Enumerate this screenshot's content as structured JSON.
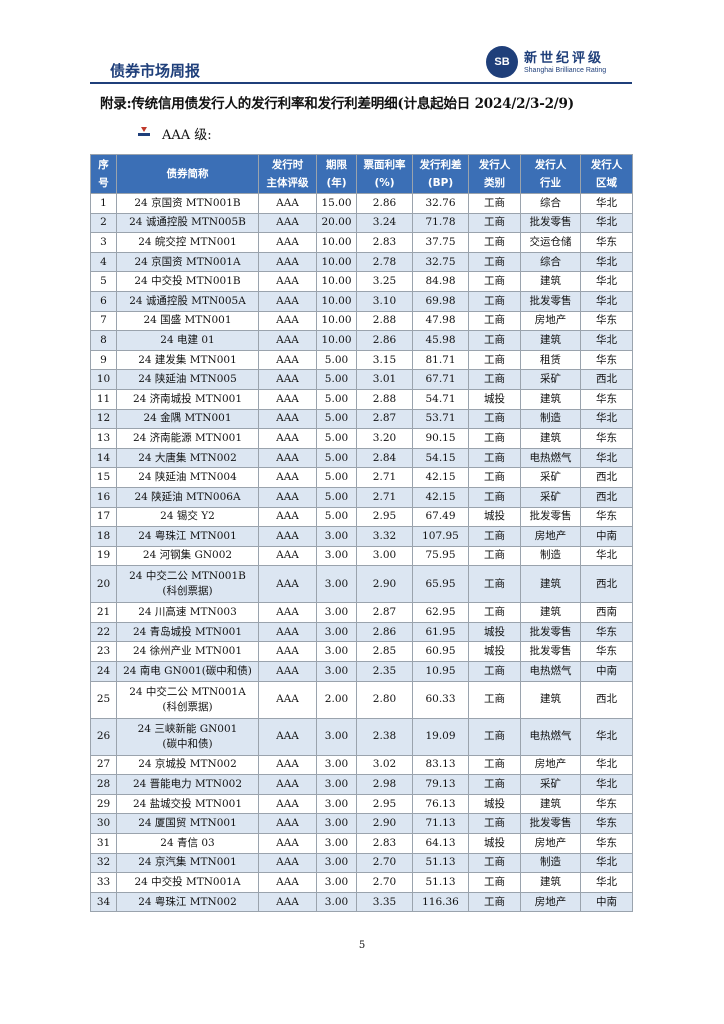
{
  "header": {
    "title": "债券市场周报",
    "logo_badge": "SB",
    "logo_cn": "新世纪评级",
    "logo_en": "Shanghai Brilliance Rating"
  },
  "appendix_title": "附录:传统信用债发行人的发行利率和发行利差明细(计息起始日 2024/2/3-2/9)",
  "section_label": "AAA 级:",
  "table": {
    "headers": [
      [
        "序",
        "号"
      ],
      [
        "债券简称"
      ],
      [
        "发行时",
        "主体评级"
      ],
      [
        "期限",
        "(年)"
      ],
      [
        "票面利率",
        "(%)"
      ],
      [
        "发行利差",
        "(BP)"
      ],
      [
        "发行人",
        "类别"
      ],
      [
        "发行人",
        "行业"
      ],
      [
        "发行人",
        "区域"
      ]
    ],
    "rows": [
      {
        "no": "1",
        "name": "24 京国资 MTN001B",
        "name2": "",
        "rating": "AAA",
        "term": "15.00",
        "coupon": "2.86",
        "spread": "32.76",
        "category": "工商",
        "industry": "综合",
        "region": "华北"
      },
      {
        "no": "2",
        "name": "24 诚通控股 MTN005B",
        "name2": "",
        "rating": "AAA",
        "term": "20.00",
        "coupon": "3.24",
        "spread": "71.78",
        "category": "工商",
        "industry": "批发零售",
        "region": "华北"
      },
      {
        "no": "3",
        "name": "24 皖交控 MTN001",
        "name2": "",
        "rating": "AAA",
        "term": "10.00",
        "coupon": "2.83",
        "spread": "37.75",
        "category": "工商",
        "industry": "交运仓储",
        "region": "华东"
      },
      {
        "no": "4",
        "name": "24 京国资 MTN001A",
        "name2": "",
        "rating": "AAA",
        "term": "10.00",
        "coupon": "2.78",
        "spread": "32.75",
        "category": "工商",
        "industry": "综合",
        "region": "华北"
      },
      {
        "no": "5",
        "name": "24 中交投 MTN001B",
        "name2": "",
        "rating": "AAA",
        "term": "10.00",
        "coupon": "3.25",
        "spread": "84.98",
        "category": "工商",
        "industry": "建筑",
        "region": "华北"
      },
      {
        "no": "6",
        "name": "24 诚通控股 MTN005A",
        "name2": "",
        "rating": "AAA",
        "term": "10.00",
        "coupon": "3.10",
        "spread": "69.98",
        "category": "工商",
        "industry": "批发零售",
        "region": "华北"
      },
      {
        "no": "7",
        "name": "24 国盛 MTN001",
        "name2": "",
        "rating": "AAA",
        "term": "10.00",
        "coupon": "2.88",
        "spread": "47.98",
        "category": "工商",
        "industry": "房地产",
        "region": "华东"
      },
      {
        "no": "8",
        "name": "24 电建 01",
        "name2": "",
        "rating": "AAA",
        "term": "10.00",
        "coupon": "2.86",
        "spread": "45.98",
        "category": "工商",
        "industry": "建筑",
        "region": "华北"
      },
      {
        "no": "9",
        "name": "24 建发集 MTN001",
        "name2": "",
        "rating": "AAA",
        "term": "5.00",
        "coupon": "3.15",
        "spread": "81.71",
        "category": "工商",
        "industry": "租赁",
        "region": "华东"
      },
      {
        "no": "10",
        "name": "24 陕延油 MTN005",
        "name2": "",
        "rating": "AAA",
        "term": "5.00",
        "coupon": "3.01",
        "spread": "67.71",
        "category": "工商",
        "industry": "采矿",
        "region": "西北"
      },
      {
        "no": "11",
        "name": "24 济南城投 MTN001",
        "name2": "",
        "rating": "AAA",
        "term": "5.00",
        "coupon": "2.88",
        "spread": "54.71",
        "category": "城投",
        "industry": "建筑",
        "region": "华东"
      },
      {
        "no": "12",
        "name": "24 金隅 MTN001",
        "name2": "",
        "rating": "AAA",
        "term": "5.00",
        "coupon": "2.87",
        "spread": "53.71",
        "category": "工商",
        "industry": "制造",
        "region": "华北"
      },
      {
        "no": "13",
        "name": "24 济南能源 MTN001",
        "name2": "",
        "rating": "AAA",
        "term": "5.00",
        "coupon": "3.20",
        "spread": "90.15",
        "category": "工商",
        "industry": "建筑",
        "region": "华东"
      },
      {
        "no": "14",
        "name": "24 大唐集 MTN002",
        "name2": "",
        "rating": "AAA",
        "term": "5.00",
        "coupon": "2.84",
        "spread": "54.15",
        "category": "工商",
        "industry": "电热燃气",
        "region": "华北"
      },
      {
        "no": "15",
        "name": "24 陕延油 MTN004",
        "name2": "",
        "rating": "AAA",
        "term": "5.00",
        "coupon": "2.71",
        "spread": "42.15",
        "category": "工商",
        "industry": "采矿",
        "region": "西北"
      },
      {
        "no": "16",
        "name": "24 陕延油 MTN006A",
        "name2": "",
        "rating": "AAA",
        "term": "5.00",
        "coupon": "2.71",
        "spread": "42.15",
        "category": "工商",
        "industry": "采矿",
        "region": "西北"
      },
      {
        "no": "17",
        "name": "24 锡交 Y2",
        "name2": "",
        "rating": "AAA",
        "term": "5.00",
        "coupon": "2.95",
        "spread": "67.49",
        "category": "城投",
        "industry": "批发零售",
        "region": "华东"
      },
      {
        "no": "18",
        "name": "24 粤珠江 MTN001",
        "name2": "",
        "rating": "AAA",
        "term": "3.00",
        "coupon": "3.32",
        "spread": "107.95",
        "category": "工商",
        "industry": "房地产",
        "region": "中南"
      },
      {
        "no": "19",
        "name": "24 河钢集 GN002",
        "name2": "",
        "rating": "AAA",
        "term": "3.00",
        "coupon": "3.00",
        "spread": "75.95",
        "category": "工商",
        "industry": "制造",
        "region": "华北"
      },
      {
        "no": "20",
        "name": "24 中交二公 MTN001B",
        "name2": "(科创票据)",
        "rating": "AAA",
        "term": "3.00",
        "coupon": "2.90",
        "spread": "65.95",
        "category": "工商",
        "industry": "建筑",
        "region": "西北"
      },
      {
        "no": "21",
        "name": "24 川高速 MTN003",
        "name2": "",
        "rating": "AAA",
        "term": "3.00",
        "coupon": "2.87",
        "spread": "62.95",
        "category": "工商",
        "industry": "建筑",
        "region": "西南"
      },
      {
        "no": "22",
        "name": "24 青岛城投 MTN001",
        "name2": "",
        "rating": "AAA",
        "term": "3.00",
        "coupon": "2.86",
        "spread": "61.95",
        "category": "城投",
        "industry": "批发零售",
        "region": "华东"
      },
      {
        "no": "23",
        "name": "24 徐州产业 MTN001",
        "name2": "",
        "rating": "AAA",
        "term": "3.00",
        "coupon": "2.85",
        "spread": "60.95",
        "category": "城投",
        "industry": "批发零售",
        "region": "华东"
      },
      {
        "no": "24",
        "name": "24 南电 GN001(碳中和债)",
        "name2": "",
        "rating": "AAA",
        "term": "3.00",
        "coupon": "2.35",
        "spread": "10.95",
        "category": "工商",
        "industry": "电热燃气",
        "region": "中南"
      },
      {
        "no": "25",
        "name": "24 中交二公 MTN001A",
        "name2": "(科创票据)",
        "rating": "AAA",
        "term": "2.00",
        "coupon": "2.80",
        "spread": "60.33",
        "category": "工商",
        "industry": "建筑",
        "region": "西北"
      },
      {
        "no": "26",
        "name": "24 三峡新能 GN001",
        "name2": "(碳中和债)",
        "rating": "AAA",
        "term": "3.00",
        "coupon": "2.38",
        "spread": "19.09",
        "category": "工商",
        "industry": "电热燃气",
        "region": "华北"
      },
      {
        "no": "27",
        "name": "24 京城投 MTN002",
        "name2": "",
        "rating": "AAA",
        "term": "3.00",
        "coupon": "3.02",
        "spread": "83.13",
        "category": "工商",
        "industry": "房地产",
        "region": "华北"
      },
      {
        "no": "28",
        "name": "24 晋能电力 MTN002",
        "name2": "",
        "rating": "AAA",
        "term": "3.00",
        "coupon": "2.98",
        "spread": "79.13",
        "category": "工商",
        "industry": "采矿",
        "region": "华北"
      },
      {
        "no": "29",
        "name": "24 盐城交投 MTN001",
        "name2": "",
        "rating": "AAA",
        "term": "3.00",
        "coupon": "2.95",
        "spread": "76.13",
        "category": "城投",
        "industry": "建筑",
        "region": "华东"
      },
      {
        "no": "30",
        "name": "24 厦国贸 MTN001",
        "name2": "",
        "rating": "AAA",
        "term": "3.00",
        "coupon": "2.90",
        "spread": "71.13",
        "category": "工商",
        "industry": "批发零售",
        "region": "华东"
      },
      {
        "no": "31",
        "name": "24 青信 03",
        "name2": "",
        "rating": "AAA",
        "term": "3.00",
        "coupon": "2.83",
        "spread": "64.13",
        "category": "城投",
        "industry": "房地产",
        "region": "华东"
      },
      {
        "no": "32",
        "name": "24 京汽集 MTN001",
        "name2": "",
        "rating": "AAA",
        "term": "3.00",
        "coupon": "2.70",
        "spread": "51.13",
        "category": "工商",
        "industry": "制造",
        "region": "华北"
      },
      {
        "no": "33",
        "name": "24 中交投 MTN001A",
        "name2": "",
        "rating": "AAA",
        "term": "3.00",
        "coupon": "2.70",
        "spread": "51.13",
        "category": "工商",
        "industry": "建筑",
        "region": "华北"
      },
      {
        "no": "34",
        "name": "24 粤珠江 MTN002",
        "name2": "",
        "rating": "AAA",
        "term": "3.00",
        "coupon": "3.35",
        "spread": "116.36",
        "category": "工商",
        "industry": "房地产",
        "region": "中南"
      }
    ]
  },
  "page_number": "5",
  "colors": {
    "header_text": "#1f3f7a",
    "table_header_bg": "#3b6fb6",
    "row_shade": "#dce6f2"
  }
}
